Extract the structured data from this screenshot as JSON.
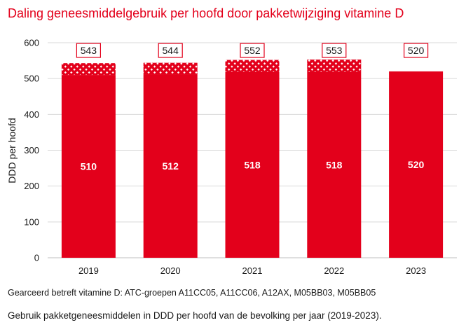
{
  "chart_data": {
    "type": "bar",
    "title": "Daling geneesmiddelgebruik per hoofd door pakketwijziging vitamine D",
    "ylabel": "DDD per hoofd",
    "xlabel": "",
    "ylim": [
      0,
      600
    ],
    "yticks": [
      0,
      100,
      200,
      300,
      400,
      500,
      600
    ],
    "grid": true,
    "stacked": true,
    "categories": [
      "2019",
      "2020",
      "2021",
      "2022",
      "2023"
    ],
    "series": [
      {
        "values": [
          510,
          512,
          518,
          518,
          520
        ],
        "fill": "solid"
      },
      {
        "values": [
          33,
          32,
          34,
          35,
          0
        ],
        "fill": "hatched"
      }
    ],
    "totals": [
      543,
      544,
      552,
      553,
      520
    ],
    "colors": {
      "bar": "#e3001b",
      "hatch_bg": "#f5b5bd",
      "grid": "#d9d9d9"
    }
  },
  "footnote": "Gearceerd betreft vitamine D: ATC-groepen A11CC05, A11CC06, A12AX, M05BB03, M05BB05",
  "caption": "Gebruik pakketgeneesmiddelen in DDD per hoofd van de bevolking per jaar (2019-2023)."
}
